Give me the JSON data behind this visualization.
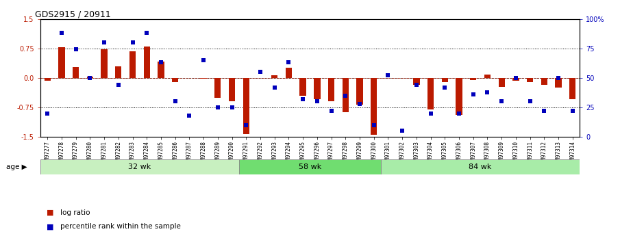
{
  "title": "GDS2915 / 20911",
  "samples": [
    "GSM97277",
    "GSM97278",
    "GSM97279",
    "GSM97280",
    "GSM97281",
    "GSM97282",
    "GSM97283",
    "GSM97284",
    "GSM97285",
    "GSM97286",
    "GSM97287",
    "GSM97288",
    "GSM97289",
    "GSM97290",
    "GSM97291",
    "GSM97292",
    "GSM97293",
    "GSM97294",
    "GSM97295",
    "GSM97296",
    "GSM97297",
    "GSM97298",
    "GSM97299",
    "GSM97300",
    "GSM97301",
    "GSM97302",
    "GSM97303",
    "GSM97304",
    "GSM97305",
    "GSM97306",
    "GSM97307",
    "GSM97308",
    "GSM97309",
    "GSM97310",
    "GSM97311",
    "GSM97312",
    "GSM97313",
    "GSM97314"
  ],
  "log_ratio": [
    -0.07,
    0.78,
    0.27,
    0.03,
    0.72,
    0.3,
    0.67,
    0.8,
    0.42,
    -0.1,
    0.0,
    -0.02,
    -0.5,
    -0.6,
    -1.42,
    0.0,
    0.07,
    0.25,
    -0.45,
    -0.55,
    -0.6,
    -0.87,
    -0.68,
    -1.45,
    0.0,
    0.0,
    -0.18,
    -0.8,
    -0.1,
    -0.95,
    -0.06,
    0.08,
    -0.22,
    -0.07,
    -0.1,
    -0.18,
    -0.25,
    -0.55
  ],
  "percentile": [
    20,
    88,
    74,
    50,
    80,
    44,
    80,
    88,
    63,
    30,
    18,
    65,
    25,
    25,
    10,
    55,
    42,
    63,
    32,
    30,
    22,
    35,
    28,
    10,
    52,
    5,
    44,
    20,
    42,
    20,
    36,
    38,
    30,
    50,
    30,
    22,
    50,
    22
  ],
  "groups": [
    {
      "label": "32 wk",
      "start": 0,
      "end": 14,
      "color": "#c8f0c0"
    },
    {
      "label": "58 wk",
      "start": 14,
      "end": 24,
      "color": "#70dd70"
    },
    {
      "label": "84 wk",
      "start": 24,
      "end": 38,
      "color": "#a8eca8"
    }
  ],
  "ylim": [
    -1.5,
    1.5
  ],
  "yticks_left": [
    -1.5,
    -0.75,
    0.0,
    0.75,
    1.5
  ],
  "bar_color": "#bb1a00",
  "dot_color": "#0000bb",
  "background_color": "#ffffff",
  "age_label": "age",
  "legend_log": "log ratio",
  "legend_pct": "percentile rank within the sample"
}
